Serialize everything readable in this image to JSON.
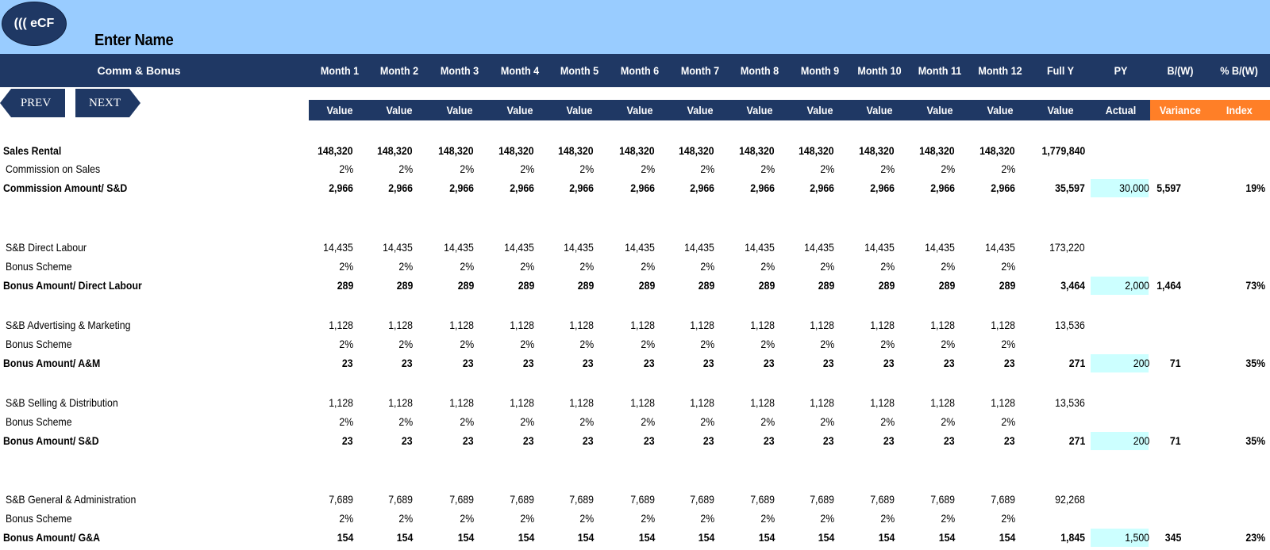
{
  "header": {
    "logo_text": "((( eCF",
    "company_name": "Enter Name",
    "section_title": "Comm & Bonus",
    "columns": [
      "Month 1",
      "Month 2",
      "Month 3",
      "Month 4",
      "Month 5",
      "Month 6",
      "Month 7",
      "Month 8",
      "Month 9",
      "Month 10",
      "Month 11",
      "Month 12",
      "Full Y",
      "PY",
      "B/(W)",
      "% B/(W)"
    ],
    "sub_columns": [
      "Value",
      "Value",
      "Value",
      "Value",
      "Value",
      "Value",
      "Value",
      "Value",
      "Value",
      "Value",
      "Value",
      "Value",
      "Value",
      "Actual",
      "Variance",
      "Index"
    ]
  },
  "nav": {
    "prev_label": "PREV",
    "next_label": "NEXT"
  },
  "colors": {
    "navy": "#1f3864",
    "banner": "#99ccff",
    "accent_orange": "#ff7f27",
    "py_highlight": "#ccffff"
  },
  "rows": [
    {
      "label": "Sales Rental",
      "style": "bold",
      "values": [
        "148,320",
        "148,320",
        "148,320",
        "148,320",
        "148,320",
        "148,320",
        "148,320",
        "148,320",
        "148,320",
        "148,320",
        "148,320",
        "148,320",
        "1,779,840",
        "",
        "",
        ""
      ]
    },
    {
      "label": "Commission on Sales",
      "style": "sub",
      "values": [
        "2%",
        "2%",
        "2%",
        "2%",
        "2%",
        "2%",
        "2%",
        "2%",
        "2%",
        "2%",
        "2%",
        "2%",
        "",
        "",
        "",
        ""
      ]
    },
    {
      "label": "Commission Amount/ S&D",
      "style": "bold",
      "values": [
        "2,966",
        "2,966",
        "2,966",
        "2,966",
        "2,966",
        "2,966",
        "2,966",
        "2,966",
        "2,966",
        "2,966",
        "2,966",
        "2,966",
        "35,597",
        "30,000",
        "5,597",
        "19%"
      ]
    },
    {
      "label": "S&B Direct Labour",
      "style": "sub",
      "values": [
        "14,435",
        "14,435",
        "14,435",
        "14,435",
        "14,435",
        "14,435",
        "14,435",
        "14,435",
        "14,435",
        "14,435",
        "14,435",
        "14,435",
        "173,220",
        "",
        "",
        ""
      ]
    },
    {
      "label": "Bonus Scheme",
      "style": "sub",
      "values": [
        "2%",
        "2%",
        "2%",
        "2%",
        "2%",
        "2%",
        "2%",
        "2%",
        "2%",
        "2%",
        "2%",
        "2%",
        "",
        "",
        "",
        ""
      ]
    },
    {
      "label": "Bonus Amount/ Direct Labour",
      "style": "bold",
      "values": [
        "289",
        "289",
        "289",
        "289",
        "289",
        "289",
        "289",
        "289",
        "289",
        "289",
        "289",
        "289",
        "3,464",
        "2,000",
        "1,464",
        "73%"
      ]
    },
    {
      "label": "S&B Advertising & Marketing",
      "style": "sub",
      "values": [
        "1,128",
        "1,128",
        "1,128",
        "1,128",
        "1,128",
        "1,128",
        "1,128",
        "1,128",
        "1,128",
        "1,128",
        "1,128",
        "1,128",
        "13,536",
        "",
        "",
        ""
      ]
    },
    {
      "label": "Bonus Scheme",
      "style": "sub",
      "values": [
        "2%",
        "2%",
        "2%",
        "2%",
        "2%",
        "2%",
        "2%",
        "2%",
        "2%",
        "2%",
        "2%",
        "2%",
        "",
        "",
        "",
        ""
      ]
    },
    {
      "label": "Bonus Amount/ A&M",
      "style": "bold",
      "values": [
        "23",
        "23",
        "23",
        "23",
        "23",
        "23",
        "23",
        "23",
        "23",
        "23",
        "23",
        "23",
        "271",
        "200",
        "71",
        "35%"
      ]
    },
    {
      "label": "S&B Selling & Distribution",
      "style": "sub",
      "values": [
        "1,128",
        "1,128",
        "1,128",
        "1,128",
        "1,128",
        "1,128",
        "1,128",
        "1,128",
        "1,128",
        "1,128",
        "1,128",
        "1,128",
        "13,536",
        "",
        "",
        ""
      ]
    },
    {
      "label": "Bonus Scheme",
      "style": "sub",
      "values": [
        "2%",
        "2%",
        "2%",
        "2%",
        "2%",
        "2%",
        "2%",
        "2%",
        "2%",
        "2%",
        "2%",
        "2%",
        "",
        "",
        "",
        ""
      ]
    },
    {
      "label": "Bonus Amount/ S&D",
      "style": "bold",
      "values": [
        "23",
        "23",
        "23",
        "23",
        "23",
        "23",
        "23",
        "23",
        "23",
        "23",
        "23",
        "23",
        "271",
        "200",
        "71",
        "35%"
      ]
    },
    {
      "label": "S&B General & Administration",
      "style": "sub",
      "values": [
        "7,689",
        "7,689",
        "7,689",
        "7,689",
        "7,689",
        "7,689",
        "7,689",
        "7,689",
        "7,689",
        "7,689",
        "7,689",
        "7,689",
        "92,268",
        "",
        "",
        ""
      ]
    },
    {
      "label": "Bonus Scheme",
      "style": "sub",
      "values": [
        "2%",
        "2%",
        "2%",
        "2%",
        "2%",
        "2%",
        "2%",
        "2%",
        "2%",
        "2%",
        "2%",
        "2%",
        "",
        "",
        "",
        ""
      ]
    },
    {
      "label": "Bonus Amount/ G&A",
      "style": "bold",
      "values": [
        "154",
        "154",
        "154",
        "154",
        "154",
        "154",
        "154",
        "154",
        "154",
        "154",
        "154",
        "154",
        "1,845",
        "1,500",
        "345",
        "23%"
      ]
    }
  ]
}
